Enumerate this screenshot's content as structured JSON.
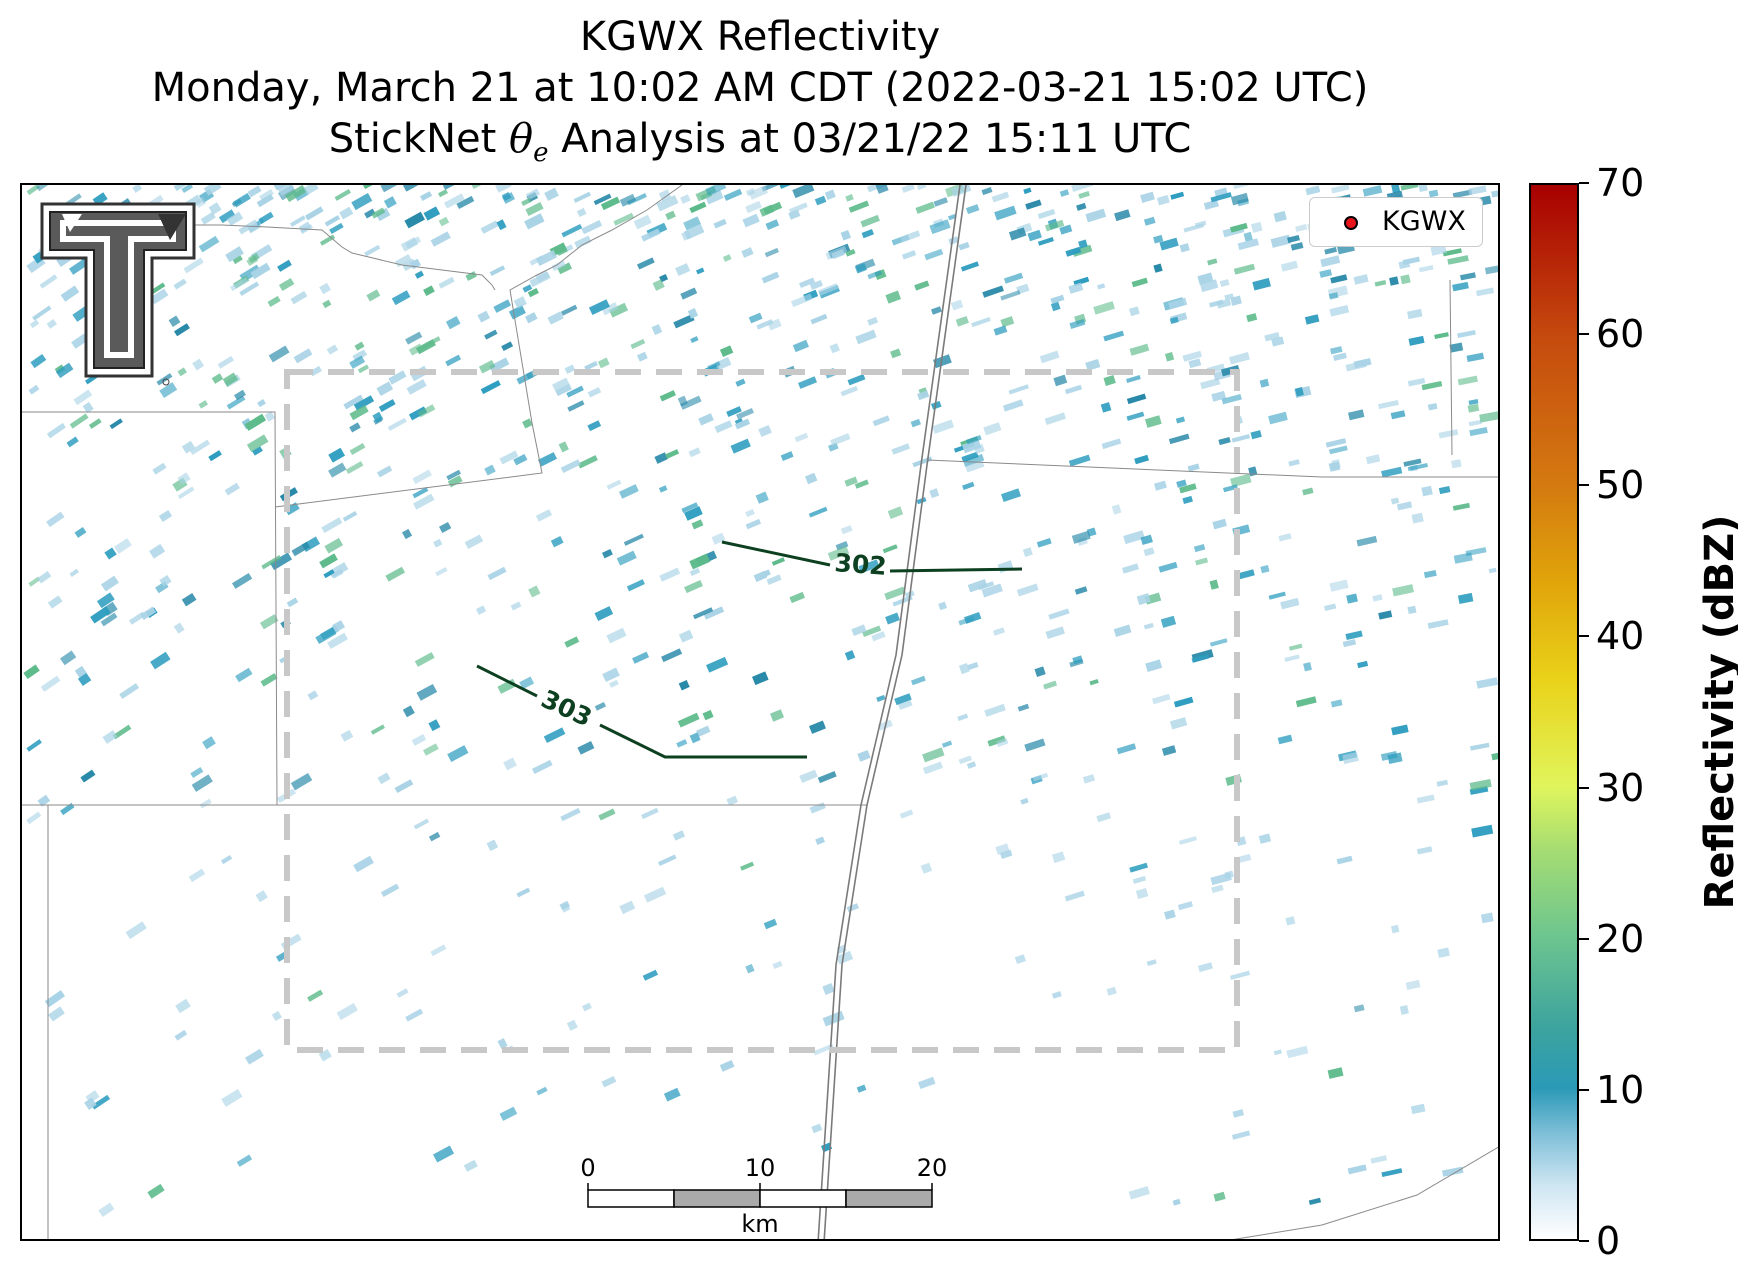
{
  "title": {
    "line1": "KGWX Reflectivity",
    "line2": "Monday, March 21 at 10:02 AM CDT (2022-03-21 15:02 UTC)",
    "line3_pre": "StickNet ",
    "line3_theta": "θ",
    "line3_sub": "e",
    "line3_post": " Analysis at 03/21/22 15:11 UTC"
  },
  "legend": {
    "radar_label": "KGWX",
    "marker_color": "#e8141c"
  },
  "colorbar": {
    "label": "Reflectivity (dBZ)",
    "ticks": [
      "0",
      "10",
      "20",
      "30",
      "40",
      "50",
      "60",
      "70"
    ],
    "min": 0,
    "max": 70
  },
  "contours": [
    {
      "label": "302",
      "color": "#0d4020"
    },
    {
      "label": "303",
      "color": "#0d4020"
    }
  ],
  "scalebar": {
    "ticks": [
      "0",
      "10",
      "20"
    ],
    "unit": "km"
  },
  "colors": {
    "echo_light": "#a9d3e6",
    "echo_mid": "#2e9dbf",
    "echo_dark": "#2688a8",
    "echo_green": "#5cba8a",
    "analysis_box": "#c8c8c8"
  }
}
